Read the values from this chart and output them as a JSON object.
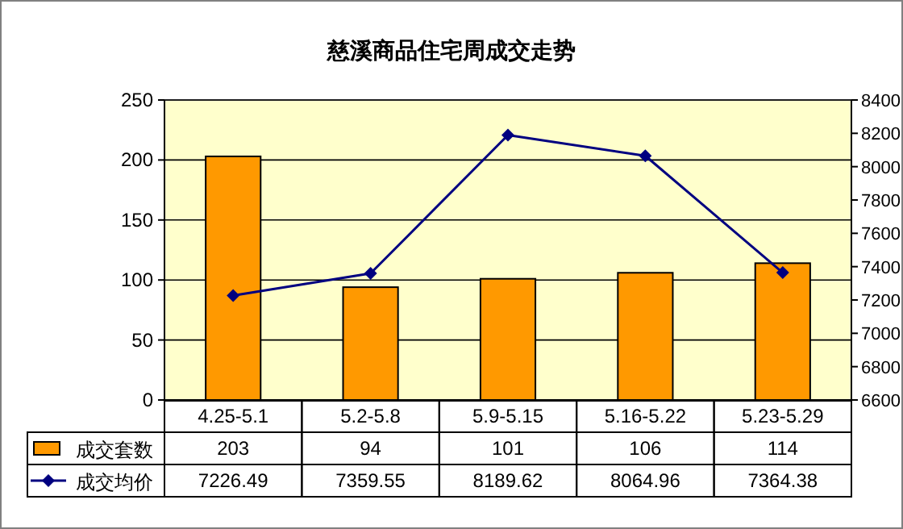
{
  "chart_data": {
    "type": "bar",
    "title": "慈溪商品住宅周成交走势",
    "categories": [
      "4.25-5.1",
      "5.2-5.8",
      "5.9-5.15",
      "5.16-5.22",
      "5.23-5.29"
    ],
    "series": [
      {
        "name": "成交套数",
        "color": "#ff9900",
        "values": [
          203,
          94,
          101,
          106,
          114
        ]
      },
      {
        "name": "成交均价",
        "type": "line",
        "axis": "y2",
        "color": "#000080",
        "values": [
          7226.49,
          7359.55,
          8189.62,
          8064.96,
          7364.38
        ]
      }
    ],
    "ylim": [
      0,
      250
    ],
    "yticks": [
      0,
      50,
      100,
      150,
      200,
      250
    ],
    "y2lim": [
      6600,
      8400
    ],
    "y2ticks": [
      6600,
      6800,
      7000,
      7200,
      7400,
      7600,
      7800,
      8000,
      8200,
      8400
    ],
    "grid": "y",
    "data_labels": true,
    "legend": "bottom left",
    "marker": "diamond",
    "line_style": "solid"
  }
}
